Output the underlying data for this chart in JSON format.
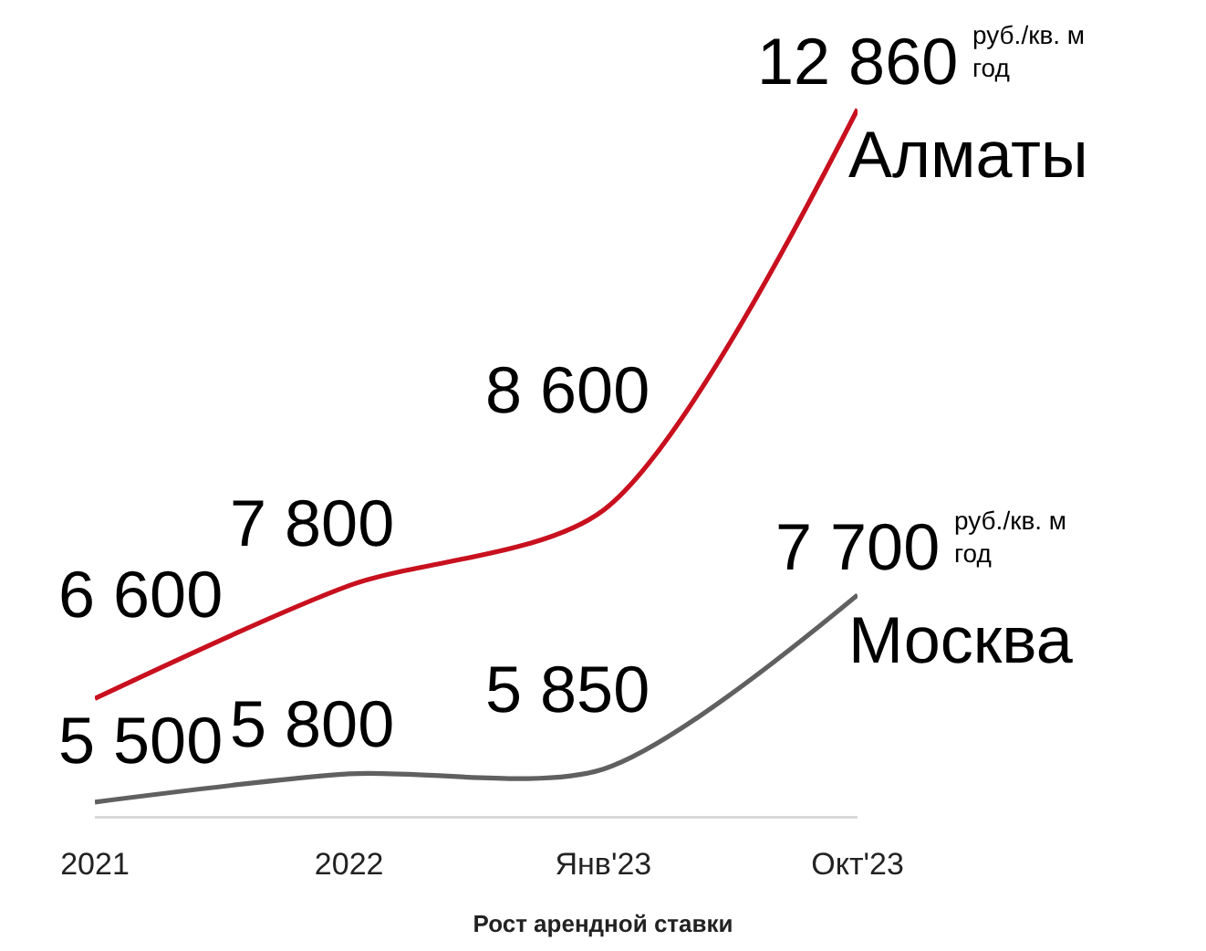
{
  "chart_data": {
    "type": "line",
    "title": "Рост арендной ставки",
    "categories": [
      "2021",
      "2022",
      "Янв'23",
      "Окт'23"
    ],
    "series": [
      {
        "name": "Алматы",
        "color": "#c8101e",
        "values": [
          6600,
          7800,
          8600,
          12860
        ],
        "value_labels": [
          "6 600",
          "7 800",
          "8 600",
          "12 860"
        ]
      },
      {
        "name": "Москва",
        "color": "#606060",
        "values": [
          5500,
          5800,
          5850,
          7700
        ],
        "value_labels": [
          "5 500",
          "5 800",
          "5 850",
          "7 700"
        ]
      }
    ],
    "annotations": [
      "руб./кв. м\nгод",
      "руб./кв. м\nгод"
    ],
    "line_style": "solid"
  }
}
